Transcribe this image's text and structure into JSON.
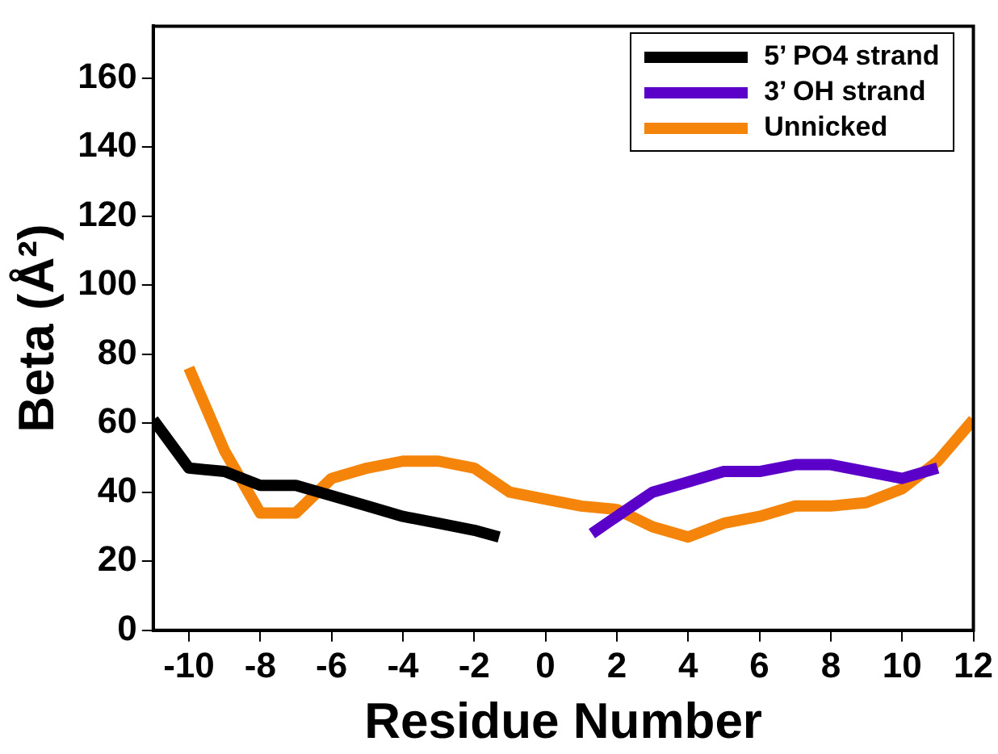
{
  "chart_data": {
    "type": "line",
    "xlabel": "Residue Number",
    "ylabel": "Beta (Å²)",
    "xlim": [
      -11,
      12
    ],
    "xticks": [
      -10,
      -8,
      -6,
      -4,
      -2,
      0,
      2,
      4,
      6,
      8,
      10,
      12
    ],
    "ylim": [
      0,
      175
    ],
    "yticks": [
      0,
      20,
      40,
      60,
      80,
      100,
      120,
      140,
      160
    ],
    "grid": false,
    "legend": "top right",
    "marker": "none",
    "line_style": "solid",
    "series": [
      {
        "name": "5’ PO4 strand",
        "color": "#000000",
        "x": [
          -11,
          -10,
          -9,
          -8,
          -7,
          -6,
          -5,
          -4,
          -3,
          -2,
          -1.3
        ],
        "values": [
          61,
          47,
          46,
          42,
          42,
          39,
          36,
          33,
          31,
          29,
          27
        ]
      },
      {
        "name": "3’ OH strand",
        "color": "#5a00c8",
        "x": [
          1.3,
          2,
          3,
          4,
          5,
          6,
          7,
          8,
          9,
          10,
          11
        ],
        "values": [
          28,
          33,
          40,
          43,
          46,
          46,
          48,
          48,
          46,
          44,
          47
        ]
      },
      {
        "name": "Unnicked",
        "color": "#f5850a",
        "x": [
          -10,
          -9,
          -8,
          -7,
          -6,
          -5,
          -4,
          -3,
          -2,
          -1,
          0,
          1,
          2,
          3,
          4,
          5,
          6,
          7,
          8,
          9,
          10,
          11,
          12
        ],
        "values": [
          76,
          52,
          34,
          34,
          44,
          47,
          49,
          49,
          47,
          40,
          38,
          36,
          35,
          30,
          27,
          31,
          33,
          36,
          36,
          37,
          41,
          49,
          61
        ]
      }
    ]
  }
}
